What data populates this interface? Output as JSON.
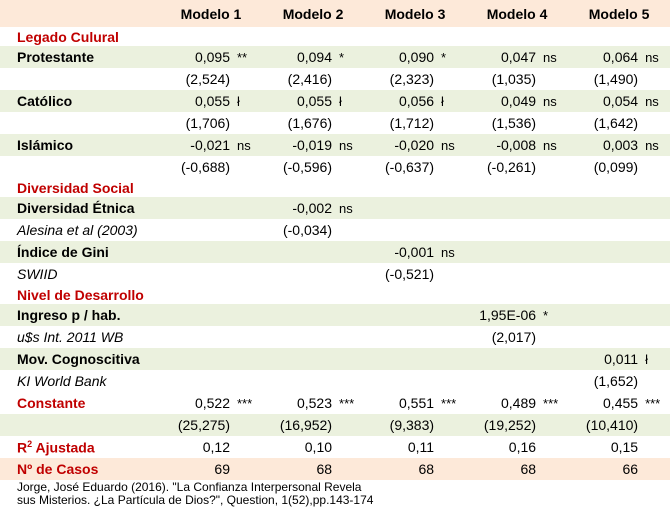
{
  "colors": {
    "green": "#ebf1de",
    "peach": "#fde9d9",
    "red": "#c00000"
  },
  "headers": [
    "Modelo 1",
    "Modelo 2",
    "Modelo 3",
    "Modelo 4",
    "Modelo 5"
  ],
  "rows": [
    {
      "label": "Legado Culural",
      "style": "section"
    },
    {
      "label": "Protestante",
      "style": "var",
      "bg": "green",
      "cells": [
        [
          "0,095",
          "**"
        ],
        [
          "0,094",
          "*"
        ],
        [
          "0,090",
          "*"
        ],
        [
          "0,047",
          "ns"
        ],
        [
          "0,064",
          "ns"
        ]
      ]
    },
    {
      "label": "",
      "style": "t",
      "cells": [
        [
          "(2,524)",
          ""
        ],
        [
          "(2,416)",
          ""
        ],
        [
          "(2,323)",
          ""
        ],
        [
          "(1,035)",
          ""
        ],
        [
          "(1,490)",
          ""
        ]
      ]
    },
    {
      "label": "Católico",
      "style": "var",
      "bg": "green",
      "cells": [
        [
          "0,055",
          "ł"
        ],
        [
          "0,055",
          "ł"
        ],
        [
          "0,056",
          "ł"
        ],
        [
          "0,049",
          "ns"
        ],
        [
          "0,054",
          "ns"
        ]
      ]
    },
    {
      "label": "",
      "style": "t",
      "cells": [
        [
          "(1,706)",
          ""
        ],
        [
          "(1,676)",
          ""
        ],
        [
          "(1,712)",
          ""
        ],
        [
          "(1,536)",
          ""
        ],
        [
          "(1,642)",
          ""
        ]
      ]
    },
    {
      "label": "Islámico",
      "style": "var",
      "bg": "green",
      "cells": [
        [
          "-0,021",
          "ns"
        ],
        [
          "-0,019",
          "ns"
        ],
        [
          "-0,020",
          "ns"
        ],
        [
          "-0,008",
          "ns"
        ],
        [
          "0,003",
          "ns"
        ]
      ]
    },
    {
      "label": "",
      "style": "t",
      "cells": [
        [
          "(-0,688)",
          ""
        ],
        [
          "(-0,596)",
          ""
        ],
        [
          "(-0,637)",
          ""
        ],
        [
          "(-0,261)",
          ""
        ],
        [
          "(0,099)",
          ""
        ]
      ]
    },
    {
      "label": "Diversidad Social",
      "style": "section"
    },
    {
      "label": "Diversidad Étnica",
      "style": "var",
      "bg": "green",
      "cells": [
        [
          "",
          ""
        ],
        [
          "-0,002",
          "ns"
        ],
        [
          "",
          ""
        ],
        [
          "",
          ""
        ],
        [
          "",
          ""
        ]
      ]
    },
    {
      "label": "Alesina et al (2003)",
      "style": "src",
      "cells": [
        [
          "",
          ""
        ],
        [
          "(-0,034)",
          ""
        ],
        [
          "",
          ""
        ],
        [
          "",
          ""
        ],
        [
          "",
          ""
        ]
      ]
    },
    {
      "label": "Índice de Gini",
      "style": "var",
      "bg": "green",
      "cells": [
        [
          "",
          ""
        ],
        [
          "",
          ""
        ],
        [
          "-0,001",
          "ns"
        ],
        [
          "",
          ""
        ],
        [
          "",
          ""
        ]
      ]
    },
    {
      "label": "SWIID",
      "style": "src",
      "cells": [
        [
          "",
          ""
        ],
        [
          "",
          ""
        ],
        [
          "(-0,521)",
          ""
        ],
        [
          "",
          ""
        ],
        [
          "",
          ""
        ]
      ]
    },
    {
      "label": "Nivel de Desarrollo",
      "style": "section"
    },
    {
      "label": "Ingreso p / hab.",
      "style": "var",
      "bg": "green",
      "cells": [
        [
          "",
          ""
        ],
        [
          "",
          ""
        ],
        [
          "",
          ""
        ],
        [
          "1,95E-06",
          "*"
        ],
        [
          "",
          ""
        ]
      ]
    },
    {
      "label": "u$s Int. 2011 WB",
      "style": "src",
      "cells": [
        [
          "",
          ""
        ],
        [
          "",
          ""
        ],
        [
          "",
          ""
        ],
        [
          "(2,017)",
          ""
        ],
        [
          "",
          ""
        ]
      ]
    },
    {
      "label": "Mov. Cognoscitiva",
      "style": "var",
      "bg": "green",
      "cells": [
        [
          "",
          ""
        ],
        [
          "",
          ""
        ],
        [
          "",
          ""
        ],
        [
          "",
          ""
        ],
        [
          "0,011",
          "ł"
        ]
      ]
    },
    {
      "label": "KI World Bank",
      "style": "src",
      "cells": [
        [
          "",
          ""
        ],
        [
          "",
          ""
        ],
        [
          "",
          ""
        ],
        [
          "",
          ""
        ],
        [
          "(1,652)",
          ""
        ]
      ]
    },
    {
      "label": "Constante",
      "style": "redvar",
      "cells": [
        [
          "0,522",
          "***"
        ],
        [
          "0,523",
          "***"
        ],
        [
          "0,551",
          "***"
        ],
        [
          "0,489",
          "***"
        ],
        [
          "0,455",
          "***"
        ]
      ]
    },
    {
      "label": "",
      "style": "t",
      "bg": "green",
      "cells": [
        [
          "(25,275)",
          ""
        ],
        [
          "(16,952)",
          ""
        ],
        [
          "(9,383)",
          ""
        ],
        [
          "(19,252)",
          ""
        ],
        [
          "(10,410)",
          ""
        ]
      ]
    },
    {
      "label": "R² Ajustada",
      "style": "redvar",
      "cells": [
        [
          "0,12",
          ""
        ],
        [
          "0,10",
          ""
        ],
        [
          "0,11",
          ""
        ],
        [
          "0,16",
          ""
        ],
        [
          "0,15",
          ""
        ]
      ]
    },
    {
      "label": "Nº de Casos",
      "style": "redvar",
      "bg": "peach",
      "cells": [
        [
          "69",
          ""
        ],
        [
          "68",
          ""
        ],
        [
          "68",
          ""
        ],
        [
          "68",
          ""
        ],
        [
          "66",
          ""
        ]
      ]
    }
  ],
  "citation": [
    "Jorge, José Eduardo (2016). \"La Confianza Interpersonal Revela",
    "sus Misterios. ¿La Partícula de Dios?\", Question, 1(52),pp.143-174"
  ]
}
